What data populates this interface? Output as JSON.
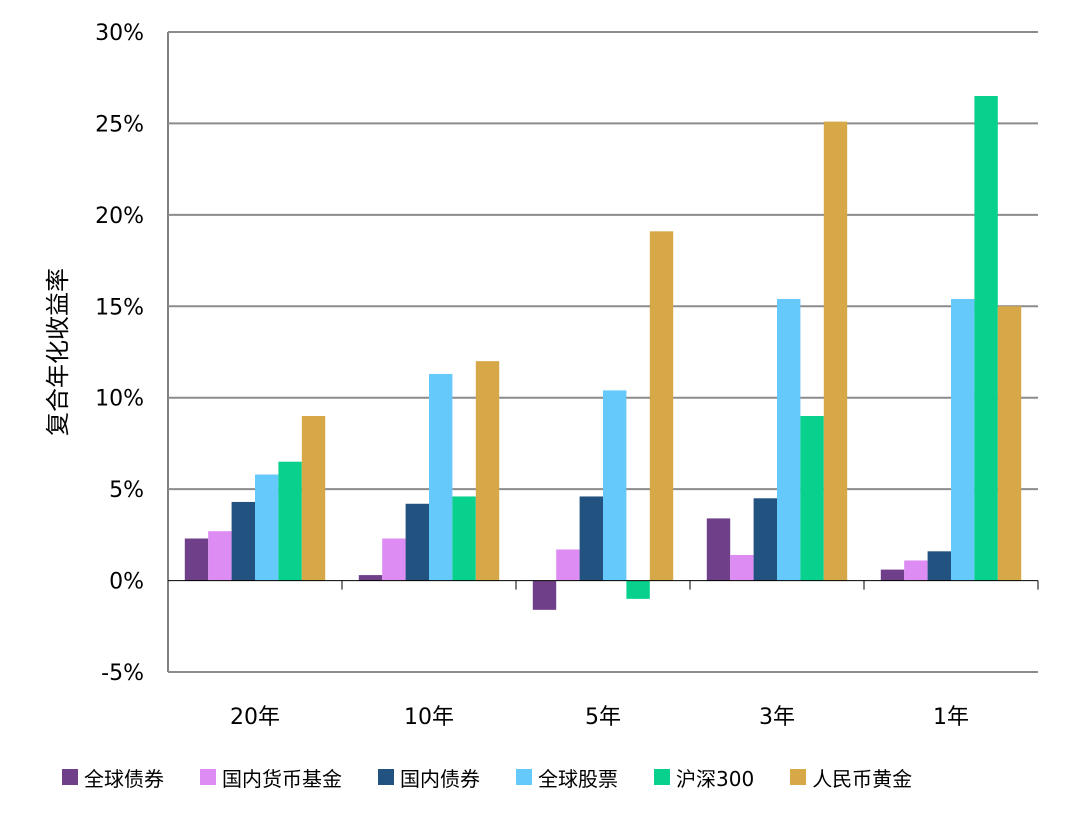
{
  "chart_data": {
    "type": "bar",
    "ylabel": "复合年化收益率",
    "xlabel": "",
    "categories": [
      "20年",
      "10年",
      "5年",
      "3年",
      "1年"
    ],
    "ylim": [
      -5,
      30
    ],
    "yticks": [
      "30%",
      "25%",
      "20%",
      "15%",
      "10%",
      "5%",
      "0%",
      "-5%"
    ],
    "grid": true,
    "legend_position": "bottom",
    "series": [
      {
        "name": "全球债券",
        "color": "#6f3f8a",
        "values": [
          2.3,
          0.3,
          -1.6,
          3.4,
          0.6
        ]
      },
      {
        "name": "国内货币基金",
        "color": "#dc8cf2",
        "values": [
          2.7,
          2.3,
          1.7,
          1.4,
          1.1
        ]
      },
      {
        "name": "国内债券",
        "color": "#22527f",
        "values": [
          4.3,
          4.2,
          4.6,
          4.5,
          1.6
        ]
      },
      {
        "name": "全球股票",
        "color": "#66c9fb",
        "values": [
          5.8,
          11.3,
          10.4,
          15.4,
          15.4
        ]
      },
      {
        "name": "沪深300",
        "color": "#08d18d",
        "values": [
          6.5,
          4.6,
          -1.0,
          9.0,
          26.5
        ]
      },
      {
        "name": "人民币黄金",
        "color": "#d6a848",
        "values": [
          9.0,
          12.0,
          19.1,
          25.1,
          15.0
        ]
      }
    ]
  }
}
